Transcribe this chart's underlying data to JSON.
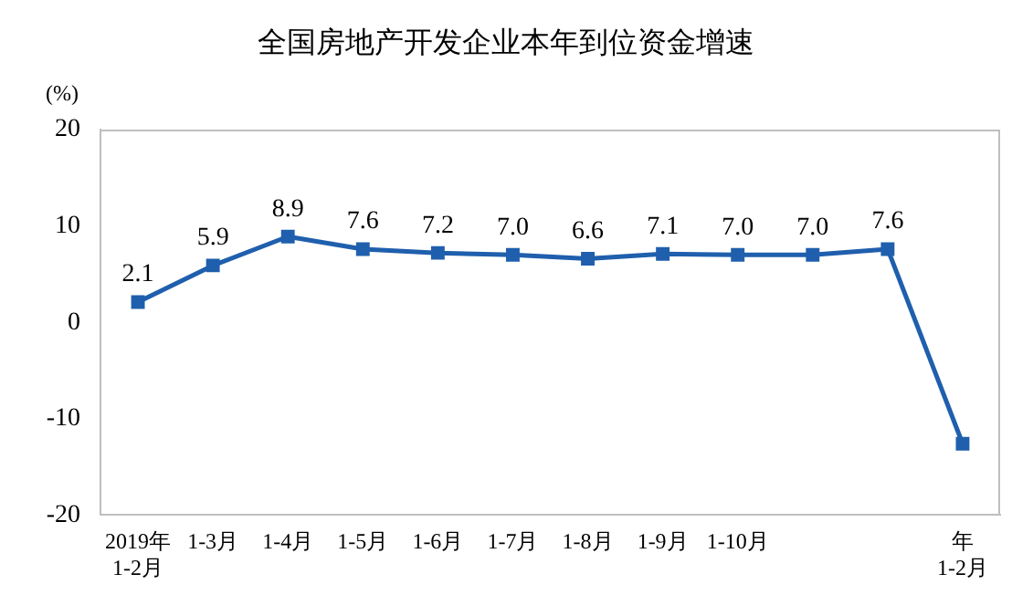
{
  "chart_data": {
    "type": "line",
    "title": "全国房地产开发企业本年到位资金增速",
    "ylabel": "(%)",
    "categories": [
      "2019年\n1-2月",
      "1-3月",
      "1-4月",
      "1-5月",
      "1-6月",
      "1-7月",
      "1-8月",
      "1-9月",
      "1-10月",
      null,
      null,
      "年\n1-2月"
    ],
    "series": [
      {
        "color": "#1f5fad",
        "values": [
          2.1,
          5.9,
          8.9,
          7.6,
          7.2,
          7.0,
          6.6,
          7.1,
          7.0,
          7.0,
          7.6,
          -12.6
        ],
        "value_labels": [
          "2.1",
          "5.9",
          "8.9",
          "7.6",
          "7.2",
          "7.0",
          "6.6",
          "7.1",
          "7.0",
          "7.0",
          "7.6",
          null
        ]
      }
    ],
    "ylim": [
      -20,
      20
    ],
    "yticks": [
      -20,
      -10,
      0,
      10,
      20
    ],
    "grid": false,
    "legend": false,
    "marker": "square",
    "line_style": "solid"
  }
}
